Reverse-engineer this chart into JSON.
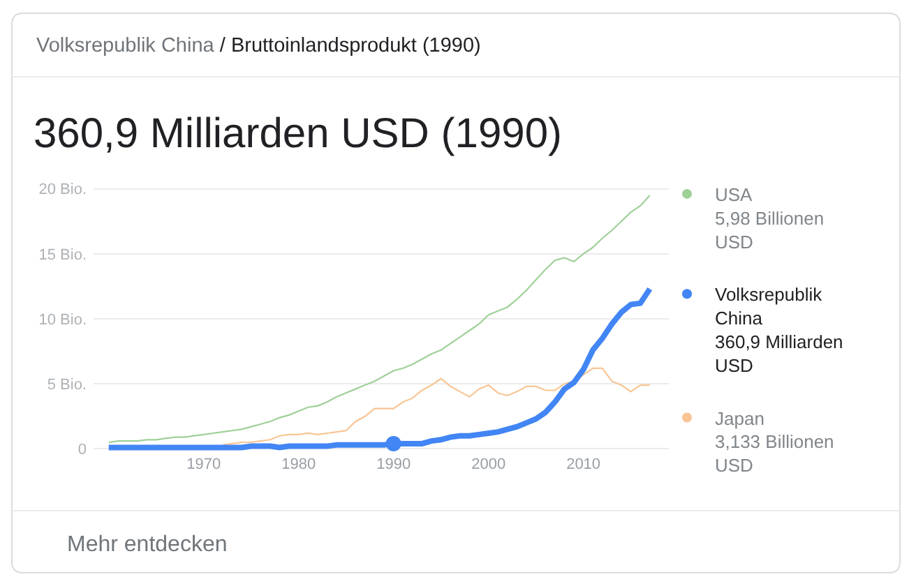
{
  "chart_data": {
    "type": "line",
    "title": "360,9 Milliarden USD (1990)",
    "subtitle": "Volksrepublik China / Bruttoinlandsprodukt (1990)",
    "annotations": [
      "Mehr entdecken"
    ],
    "x": [
      1960,
      1961,
      1962,
      1963,
      1964,
      1965,
      1966,
      1967,
      1968,
      1969,
      1970,
      1971,
      1972,
      1973,
      1974,
      1975,
      1976,
      1977,
      1978,
      1979,
      1980,
      1981,
      1982,
      1983,
      1984,
      1985,
      1986,
      1987,
      1988,
      1989,
      1990,
      1991,
      1992,
      1993,
      1994,
      1995,
      1996,
      1997,
      1998,
      1999,
      2000,
      2001,
      2002,
      2003,
      2004,
      2005,
      2006,
      2007,
      2008,
      2009,
      2010,
      2011,
      2012,
      2013,
      2014,
      2015,
      2016,
      2017
    ],
    "xlim": [
      1958.4,
      2019
    ],
    "xticks": [
      1970,
      1980,
      1990,
      2000,
      2010
    ],
    "ylim": [
      -0.25,
      20.25
    ],
    "yticks": [
      0,
      {
        "value": 5,
        "label": "5 Bio."
      },
      {
        "value": 10,
        "label": "10 Bio."
      },
      {
        "value": 15,
        "label": "15 Bio."
      },
      {
        "value": 20,
        "label": "20 Bio."
      }
    ],
    "grid": "y",
    "legend": "right",
    "series": [
      {
        "name": "USA\n5,98 Billionen USD",
        "color": "#9fd098",
        "values": [
          0.5,
          0.6,
          0.6,
          0.6,
          0.7,
          0.7,
          0.8,
          0.9,
          0.9,
          1.0,
          1.1,
          1.2,
          1.3,
          1.4,
          1.5,
          1.7,
          1.9,
          2.1,
          2.4,
          2.6,
          2.9,
          3.2,
          3.3,
          3.6,
          4.0,
          4.3,
          4.6,
          4.9,
          5.2,
          5.6,
          6.0,
          6.2,
          6.5,
          6.9,
          7.3,
          7.6,
          8.1,
          8.6,
          9.1,
          9.6,
          10.3,
          10.6,
          10.9,
          11.5,
          12.2,
          13.0,
          13.8,
          14.5,
          14.7,
          14.4,
          15.0,
          15.5,
          16.2,
          16.8,
          17.5,
          18.2,
          18.7,
          19.5
        ]
      },
      {
        "name": "Volksrepublik China\n360,9 Milliarden USD",
        "color": "#4285f4",
        "values": [
          0.1,
          0.1,
          0.1,
          0.1,
          0.1,
          0.1,
          0.1,
          0.1,
          0.1,
          0.1,
          0.1,
          0.1,
          0.1,
          0.1,
          0.1,
          0.2,
          0.2,
          0.2,
          0.1,
          0.2,
          0.2,
          0.2,
          0.2,
          0.2,
          0.3,
          0.3,
          0.3,
          0.3,
          0.3,
          0.3,
          0.4,
          0.4,
          0.4,
          0.4,
          0.6,
          0.7,
          0.9,
          1.0,
          1.0,
          1.1,
          1.2,
          1.3,
          1.5,
          1.7,
          2.0,
          2.3,
          2.8,
          3.6,
          4.6,
          5.1,
          6.1,
          7.6,
          8.5,
          9.6,
          10.5,
          11.1,
          11.2,
          12.3
        ]
      },
      {
        "name": "Japan\n3,133 Billionen USD",
        "color": "#f8c593",
        "values": [
          null,
          null,
          null,
          null,
          null,
          null,
          null,
          null,
          null,
          null,
          null,
          null,
          0.3,
          0.4,
          0.5,
          0.5,
          0.6,
          0.7,
          1.0,
          1.1,
          1.1,
          1.2,
          1.1,
          1.2,
          1.3,
          1.4,
          2.1,
          2.5,
          3.1,
          3.1,
          3.1,
          3.6,
          3.9,
          4.5,
          4.9,
          5.4,
          4.8,
          4.4,
          4.0,
          4.6,
          4.9,
          4.3,
          4.1,
          4.4,
          4.8,
          4.8,
          4.5,
          4.5,
          5.0,
          5.2,
          5.7,
          6.2,
          6.2,
          5.2,
          4.9,
          4.4,
          4.9,
          4.9
        ]
      },
      {
        "type": "scatter",
        "x": [
          1990
        ],
        "values": [
          0.4
        ],
        "color": "#4285f4",
        "marker": "circle"
      }
    ]
  }
}
